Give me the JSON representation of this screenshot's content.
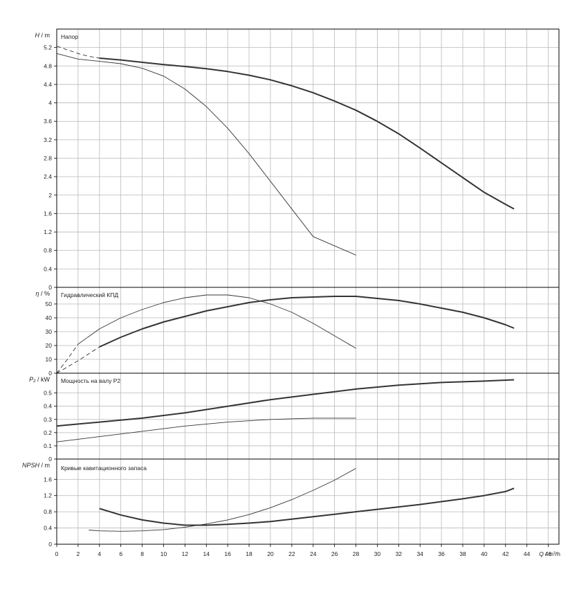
{
  "chart_data": [
    {
      "type": "line",
      "title": "Напор",
      "ylabel_sym": "H",
      "ylabel_unit": "m",
      "ylim": [
        0,
        5.6
      ],
      "yticks": [
        "0",
        "0.4",
        "0.8",
        "1.2",
        "1.6",
        "2",
        "2.4",
        "2.8",
        "3.2",
        "3.6",
        "4",
        "4.4",
        "4.8",
        "5.2"
      ],
      "yvals": [
        0,
        0.4,
        0.8,
        1.2,
        1.6,
        2,
        2.4,
        2.8,
        3.2,
        3.6,
        4,
        4.4,
        4.8,
        5.2
      ],
      "grid": true,
      "series": [
        {
          "style": "thick",
          "x": [
            4,
            6,
            8,
            10,
            12,
            14,
            16,
            18,
            20,
            22,
            24,
            26,
            28,
            30,
            32,
            34,
            36,
            38,
            40,
            42,
            42.8
          ],
          "y": [
            4.97,
            4.93,
            4.88,
            4.83,
            4.79,
            4.74,
            4.68,
            4.6,
            4.5,
            4.37,
            4.22,
            4.04,
            3.84,
            3.6,
            3.33,
            3.02,
            2.7,
            2.38,
            2.06,
            1.8,
            1.7
          ],
          "lead_x": [
            0,
            1,
            2,
            3,
            4
          ],
          "lead_y": [
            5.23,
            5.15,
            5.07,
            5.01,
            4.97
          ]
        },
        {
          "style": "thin",
          "x": [
            0,
            2,
            4,
            6,
            8,
            10,
            12,
            14,
            16,
            18,
            20,
            22,
            24,
            26,
            28
          ],
          "y": [
            5.07,
            4.95,
            4.9,
            4.85,
            4.75,
            4.58,
            4.3,
            3.92,
            3.45,
            2.9,
            2.3,
            1.7,
            1.1,
            0.9,
            0.7
          ],
          "lead_x": [],
          "lead_y": []
        }
      ]
    },
    {
      "type": "line",
      "title": "Гидравлический КПД",
      "ylabel_sym": "η",
      "ylabel_unit": "%",
      "ylim": [
        0,
        62
      ],
      "yticks": [
        "0",
        "10",
        "20",
        "30",
        "40",
        "50"
      ],
      "yvals": [
        0,
        10,
        20,
        30,
        40,
        50
      ],
      "grid": true,
      "series": [
        {
          "style": "thick",
          "x": [
            4,
            6,
            8,
            10,
            12,
            14,
            16,
            18,
            20,
            22,
            24,
            26,
            28,
            30,
            32,
            34,
            36,
            38,
            40,
            42,
            42.8
          ],
          "y": [
            19,
            26,
            32,
            37,
            41,
            45,
            48,
            51,
            53,
            54.5,
            55,
            55.5,
            55.5,
            54,
            52.5,
            50,
            47,
            44,
            40,
            35,
            32.5
          ],
          "lead_x": [
            0,
            1,
            2,
            3,
            4
          ],
          "lead_y": [
            0,
            4.5,
            9,
            14,
            19
          ]
        },
        {
          "style": "thin",
          "x": [
            2,
            4,
            6,
            8,
            10,
            12,
            14,
            16,
            18,
            20,
            22,
            24,
            26,
            28
          ],
          "y": [
            21,
            32,
            40,
            46,
            51,
            54.5,
            56.5,
            56.5,
            54.5,
            50,
            44,
            36,
            27,
            18
          ],
          "lead_x": [
            0,
            1,
            2
          ],
          "lead_y": [
            0,
            10,
            21
          ]
        }
      ]
    },
    {
      "type": "line",
      "title": "Мощность на валу P2",
      "ylabel_sym": "P₂",
      "ylabel_unit": "kW",
      "ylim": [
        0,
        0.65
      ],
      "yticks": [
        "0",
        "0.1",
        "0.2",
        "0.3",
        "0.4",
        "0.5"
      ],
      "yvals": [
        0,
        0.1,
        0.2,
        0.3,
        0.4,
        0.5
      ],
      "grid": true,
      "series": [
        {
          "style": "thick",
          "x": [
            0,
            4,
            8,
            12,
            16,
            20,
            24,
            28,
            32,
            36,
            40,
            42.8
          ],
          "y": [
            0.25,
            0.28,
            0.31,
            0.35,
            0.4,
            0.45,
            0.49,
            0.53,
            0.56,
            0.58,
            0.59,
            0.6
          ],
          "lead_x": [],
          "lead_y": []
        },
        {
          "style": "thin",
          "x": [
            0,
            4,
            8,
            12,
            16,
            20,
            24,
            28
          ],
          "y": [
            0.13,
            0.17,
            0.21,
            0.25,
            0.28,
            0.3,
            0.31,
            0.31
          ],
          "lead_x": [],
          "lead_y": []
        }
      ]
    },
    {
      "type": "line",
      "title": "Кривые кавитационного запаса",
      "ylabel_sym": "NPSH",
      "ylabel_unit": "m",
      "ylim": [
        0,
        2.1
      ],
      "yticks": [
        "0",
        "0.4",
        "0.8",
        "1.2",
        "1.6"
      ],
      "yvals": [
        0,
        0.4,
        0.8,
        1.2,
        1.6
      ],
      "grid": true,
      "series": [
        {
          "style": "thick",
          "x": [
            4,
            6,
            8,
            10,
            12,
            14,
            16,
            18,
            20,
            22,
            24,
            26,
            28,
            30,
            32,
            34,
            36,
            38,
            40,
            42,
            42.8
          ],
          "y": [
            0.88,
            0.72,
            0.6,
            0.52,
            0.47,
            0.47,
            0.49,
            0.52,
            0.56,
            0.62,
            0.68,
            0.74,
            0.8,
            0.86,
            0.92,
            0.98,
            1.05,
            1.12,
            1.2,
            1.3,
            1.38
          ],
          "lead_x": [],
          "lead_y": []
        },
        {
          "style": "thin",
          "x": [
            3,
            4,
            6,
            8,
            10,
            12,
            14,
            16,
            18,
            20,
            22,
            24,
            26,
            28
          ],
          "y": [
            0.35,
            0.33,
            0.32,
            0.33,
            0.36,
            0.42,
            0.5,
            0.6,
            0.73,
            0.9,
            1.1,
            1.33,
            1.58,
            1.87
          ],
          "lead_x": [],
          "lead_y": []
        }
      ]
    }
  ],
  "x_axis": {
    "label_sym": "Q",
    "label_unit": "m³/h",
    "xlim": [
      0,
      47
    ],
    "ticks": [
      "0",
      "2",
      "4",
      "6",
      "8",
      "10",
      "12",
      "14",
      "16",
      "18",
      "20",
      "22",
      "24",
      "26",
      "28",
      "30",
      "32",
      "34",
      "36",
      "38",
      "40",
      "42",
      "44",
      "46"
    ],
    "tickvals": [
      0,
      2,
      4,
      6,
      8,
      10,
      12,
      14,
      16,
      18,
      20,
      22,
      24,
      26,
      28,
      30,
      32,
      34,
      36,
      38,
      40,
      42,
      44,
      46
    ]
  },
  "colors": {
    "curve": "#333333",
    "grid": "#b8b8b8",
    "frame": "#000000"
  }
}
